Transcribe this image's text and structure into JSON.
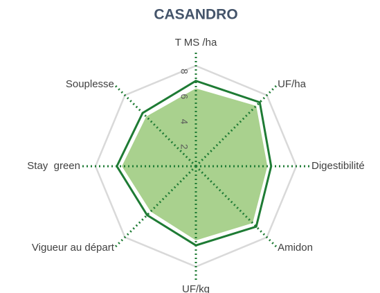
{
  "chart_data": {
    "type": "radar",
    "title": "CASANDRO",
    "categories": [
      "T MS /ha",
      "UF/ha",
      "Digestibilité",
      "Amidon",
      "UF/kg",
      "Vigueur au départ",
      "Stay  green",
      "Souplesse"
    ],
    "series": [
      {
        "color": "#a9d18e",
        "fill": true,
        "values": [
          6.2,
          6.8,
          5.7,
          6.4,
          5.9,
          5.1,
          5.9,
          5.6
        ]
      },
      {
        "color": "#1e7b34",
        "fill": false,
        "values": [
          6.8,
          7.2,
          6.0,
          6.8,
          6.3,
          5.5,
          6.3,
          6.0
        ]
      }
    ],
    "ylim": [
      0,
      8
    ],
    "yticks": [
      2,
      4,
      6,
      8
    ],
    "grid_color": "#d9d9d9",
    "axis_color": "#1e7b34"
  }
}
